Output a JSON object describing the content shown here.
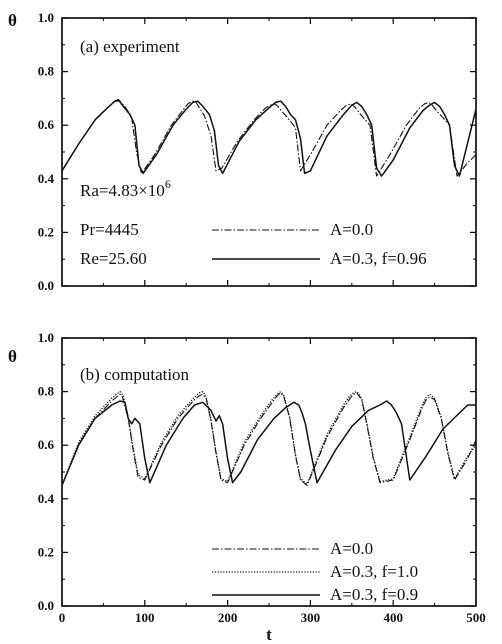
{
  "chart_data": [
    {
      "type": "line",
      "title": "(a) experiment",
      "xlabel": "",
      "ylabel": "θ",
      "xlim": [
        0,
        500
      ],
      "ylim": [
        0.0,
        1.0
      ],
      "x_ticks": [],
      "y_ticks": [
        "0.0",
        "0.2",
        "0.4",
        "0.6",
        "0.8",
        "1.0"
      ],
      "y_tick_values": [
        0.0,
        0.2,
        0.4,
        0.6,
        0.8,
        1.0
      ],
      "grid": false,
      "legend_position": "bottom-right",
      "annotations": [
        "Ra=4.83×10",
        "6",
        "Pr=4445",
        "Re=25.60"
      ],
      "series": [
        {
          "name": "A=0.0",
          "style": "dashdot",
          "x": [
            0,
            20,
            40,
            55,
            62,
            66,
            70,
            76,
            84,
            90,
            96,
            112,
            132,
            152,
            158,
            162,
            166,
            172,
            180,
            186,
            193,
            212,
            232,
            246,
            252,
            257,
            261,
            266,
            272,
            282,
            288,
            300,
            320,
            338,
            344,
            349,
            353,
            357,
            362,
            372,
            380,
            396,
            416,
            432,
            438,
            443,
            447,
            452,
            458,
            468,
            477,
            490,
            500
          ],
          "y": [
            0.43,
            0.53,
            0.62,
            0.665,
            0.685,
            0.69,
            0.69,
            0.67,
            0.63,
            0.5,
            0.42,
            0.49,
            0.6,
            0.68,
            0.69,
            0.685,
            0.665,
            0.635,
            0.56,
            0.43,
            0.44,
            0.54,
            0.62,
            0.665,
            0.675,
            0.68,
            0.67,
            0.65,
            0.63,
            0.59,
            0.43,
            0.49,
            0.6,
            0.66,
            0.675,
            0.68,
            0.67,
            0.655,
            0.635,
            0.6,
            0.41,
            0.49,
            0.6,
            0.665,
            0.68,
            0.685,
            0.675,
            0.655,
            0.635,
            0.6,
            0.41,
            0.46,
            0.49
          ]
        },
        {
          "name": "A=0.3, f=0.96",
          "style": "solid",
          "x": [
            0,
            20,
            40,
            55,
            64,
            68,
            74,
            82,
            88,
            93,
            98,
            114,
            134,
            150,
            158,
            164,
            170,
            178,
            184,
            189,
            194,
            214,
            234,
            250,
            258,
            264,
            270,
            276,
            282,
            288,
            293,
            300,
            320,
            340,
            350,
            356,
            362,
            368,
            374,
            380,
            386,
            400,
            420,
            436,
            444,
            450,
            456,
            462,
            468,
            474,
            480,
            500
          ],
          "y": [
            0.43,
            0.53,
            0.62,
            0.665,
            0.69,
            0.695,
            0.67,
            0.64,
            0.6,
            0.45,
            0.42,
            0.49,
            0.6,
            0.66,
            0.685,
            0.69,
            0.67,
            0.64,
            0.58,
            0.45,
            0.42,
            0.54,
            0.62,
            0.665,
            0.685,
            0.69,
            0.67,
            0.64,
            0.62,
            0.55,
            0.42,
            0.43,
            0.56,
            0.64,
            0.675,
            0.685,
            0.67,
            0.64,
            0.6,
            0.44,
            0.41,
            0.47,
            0.59,
            0.655,
            0.675,
            0.685,
            0.67,
            0.64,
            0.6,
            0.45,
            0.41,
            0.66
          ]
        }
      ]
    },
    {
      "type": "line",
      "title": "(b) computation",
      "xlabel": "t",
      "ylabel": "θ",
      "xlim": [
        0,
        500
      ],
      "ylim": [
        0.0,
        1.0
      ],
      "x_ticks": [
        "0",
        "100",
        "200",
        "300",
        "400",
        "500"
      ],
      "x_tick_values": [
        0,
        100,
        200,
        300,
        400,
        500
      ],
      "y_ticks": [
        "0.0",
        "0.2",
        "0.4",
        "0.6",
        "0.8",
        "1.0"
      ],
      "y_tick_values": [
        0.0,
        0.2,
        0.4,
        0.6,
        0.8,
        1.0
      ],
      "grid": false,
      "legend_position": "bottom-right",
      "annotations": [],
      "series": [
        {
          "name": "A=0.0",
          "style": "dashdot",
          "x": [
            0,
            20,
            40,
            60,
            66,
            70,
            73,
            80,
            86,
            92,
            100,
            120,
            140,
            160,
            166,
            170,
            174,
            180,
            186,
            192,
            200,
            220,
            240,
            254,
            260,
            264,
            268,
            275,
            282,
            288,
            296,
            320,
            340,
            348,
            352,
            356,
            362,
            368,
            376,
            384,
            400,
            420,
            435,
            440,
            444,
            450,
            458,
            466,
            474,
            490,
            500
          ],
          "y": [
            0.45,
            0.6,
            0.7,
            0.765,
            0.78,
            0.79,
            0.78,
            0.7,
            0.58,
            0.48,
            0.47,
            0.6,
            0.7,
            0.77,
            0.785,
            0.79,
            0.775,
            0.69,
            0.57,
            0.47,
            0.46,
            0.6,
            0.7,
            0.76,
            0.785,
            0.795,
            0.78,
            0.7,
            0.56,
            0.47,
            0.45,
            0.63,
            0.74,
            0.775,
            0.79,
            0.795,
            0.77,
            0.68,
            0.55,
            0.46,
            0.47,
            0.62,
            0.74,
            0.77,
            0.78,
            0.77,
            0.7,
            0.57,
            0.47,
            0.55,
            0.62
          ]
        },
        {
          "name": "A=0.3, f=1.0",
          "style": "dotted",
          "x": [
            0,
            20,
            40,
            60,
            66,
            70,
            74,
            80,
            86,
            92,
            100,
            120,
            140,
            160,
            166,
            170,
            174,
            180,
            186,
            192,
            200,
            220,
            240,
            254,
            260,
            264,
            268,
            275,
            282,
            288,
            296,
            320,
            340,
            348,
            352,
            356,
            362,
            368,
            376,
            384,
            400,
            420,
            435,
            440,
            444,
            450,
            458,
            466,
            474,
            490,
            500
          ],
          "y": [
            0.45,
            0.61,
            0.71,
            0.775,
            0.79,
            0.8,
            0.785,
            0.705,
            0.59,
            0.49,
            0.475,
            0.61,
            0.71,
            0.78,
            0.795,
            0.8,
            0.78,
            0.695,
            0.575,
            0.475,
            0.465,
            0.61,
            0.71,
            0.77,
            0.79,
            0.8,
            0.785,
            0.705,
            0.565,
            0.475,
            0.455,
            0.64,
            0.75,
            0.785,
            0.795,
            0.8,
            0.775,
            0.685,
            0.555,
            0.465,
            0.475,
            0.63,
            0.75,
            0.78,
            0.79,
            0.775,
            0.705,
            0.575,
            0.475,
            0.56,
            0.6
          ]
        },
        {
          "name": "A=0.3, f=0.9",
          "style": "solid",
          "x": [
            0,
            20,
            40,
            60,
            70,
            76,
            80,
            84,
            88,
            94,
            100,
            106,
            126,
            146,
            160,
            170,
            180,
            186,
            190,
            194,
            200,
            206,
            216,
            236,
            256,
            270,
            280,
            286,
            290,
            294,
            300,
            308,
            330,
            350,
            370,
            384,
            392,
            398,
            404,
            410,
            420,
            440,
            460,
            480,
            490,
            500
          ],
          "y": [
            0.45,
            0.6,
            0.7,
            0.75,
            0.765,
            0.76,
            0.7,
            0.68,
            0.7,
            0.68,
            0.55,
            0.46,
            0.6,
            0.7,
            0.75,
            0.76,
            0.73,
            0.69,
            0.71,
            0.68,
            0.55,
            0.46,
            0.5,
            0.62,
            0.7,
            0.74,
            0.76,
            0.75,
            0.72,
            0.68,
            0.58,
            0.46,
            0.58,
            0.67,
            0.73,
            0.75,
            0.765,
            0.75,
            0.72,
            0.68,
            0.47,
            0.56,
            0.66,
            0.72,
            0.75,
            0.75
          ]
        }
      ]
    }
  ]
}
